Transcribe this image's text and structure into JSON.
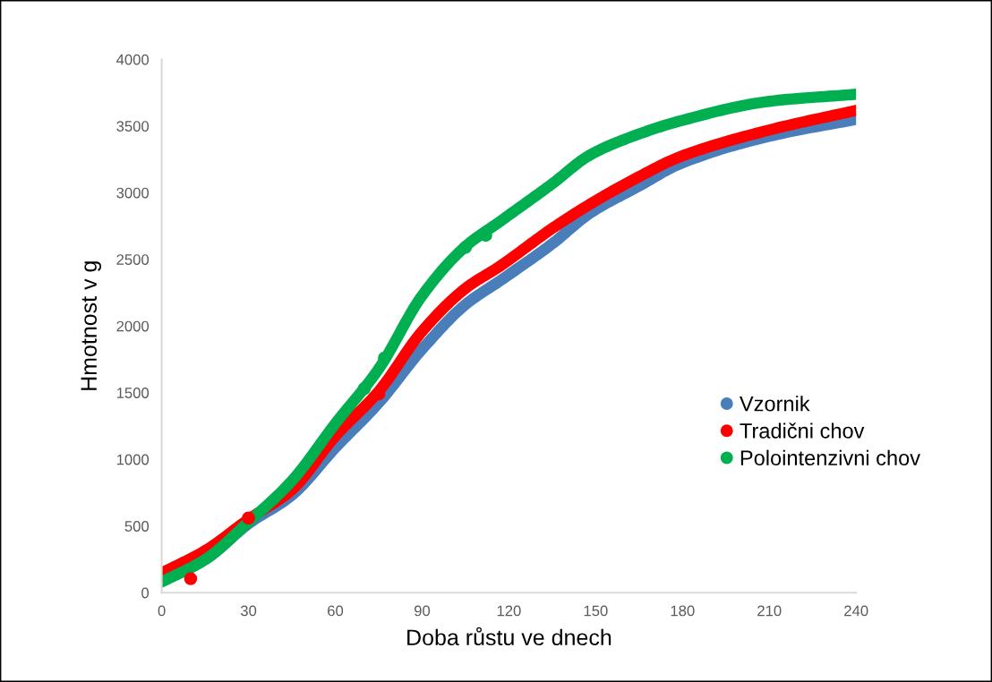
{
  "chart_data": {
    "type": "line",
    "xlabel": "Doba růstu ve dnech",
    "ylabel": "Hmotnost v g",
    "xlim": [
      0,
      240
    ],
    "xticks": [
      0,
      30,
      60,
      90,
      120,
      150,
      180,
      210,
      240
    ],
    "ylim": [
      0,
      4000
    ],
    "yticks": [
      0,
      500,
      1000,
      1500,
      2000,
      2500,
      3000,
      3500,
      4000
    ],
    "grid": false,
    "legend": "right",
    "marker": "none",
    "line_style": "solid",
    "series": [
      {
        "name": "Vzornik",
        "color": "#4a7ebb",
        "x": [
          0,
          15,
          30,
          45,
          60,
          75,
          90,
          105,
          117,
          135,
          148,
          165,
          179,
          210,
          240
        ],
        "values": [
          90,
          248,
          517,
          731,
          1087,
          1423,
          1826,
          2161,
          2340,
          2617,
          2846,
          3050,
          3215,
          3423,
          3550
        ]
      },
      {
        "name": "Tradični chov",
        "color": "#ff0000",
        "x": [
          0,
          15,
          30,
          45,
          60,
          75,
          90,
          105,
          117,
          135,
          148,
          165,
          179,
          210,
          240
        ],
        "values": [
          148,
          315,
          550,
          772,
          1174,
          1510,
          1960,
          2282,
          2450,
          2732,
          2913,
          3120,
          3268,
          3470,
          3617
        ]
      },
      {
        "name": "Polointenzivni chov",
        "color": "#00b050",
        "x": [
          0,
          15,
          30,
          45,
          60,
          75,
          90,
          105,
          117,
          135,
          148,
          165,
          179,
          210,
          240
        ],
        "values": [
          80,
          248,
          530,
          839,
          1268,
          1678,
          2228,
          2597,
          2785,
          3067,
          3282,
          3440,
          3537,
          3685,
          3738
        ]
      },
      {
        "type": "scatter",
        "color": "#ff0000",
        "marker": "circle",
        "x": [
          10,
          30,
          75
        ],
        "values": [
          105,
          560,
          1490
        ]
      },
      {
        "type": "scatter",
        "color": "#00b050",
        "marker": "circle",
        "x": [
          70,
          77,
          105,
          112
        ],
        "values": [
          1530,
          1760,
          2590,
          2680
        ]
      }
    ]
  }
}
